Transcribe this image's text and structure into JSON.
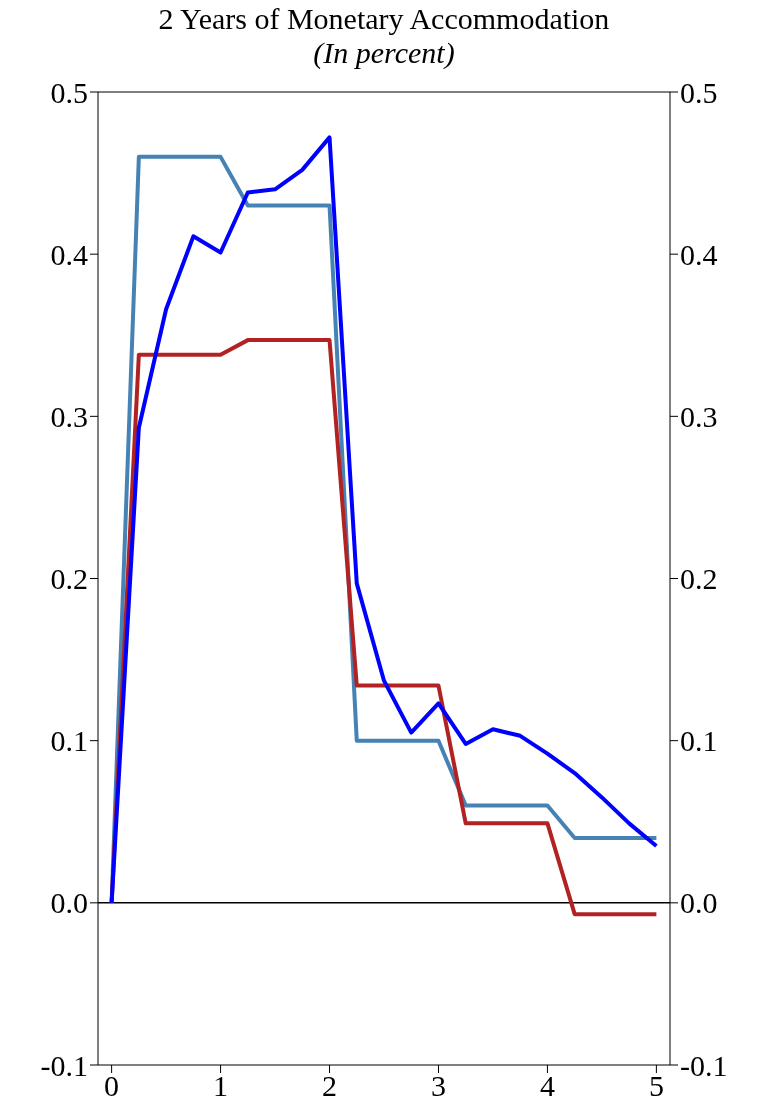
{
  "chart_data": {
    "type": "line",
    "title": "2 Years of Monetary Accommodation",
    "subtitle": "(In percent)",
    "x": [
      0,
      0.25,
      0.5,
      0.75,
      1,
      1.25,
      1.5,
      1.75,
      2,
      2.25,
      2.5,
      2.75,
      3,
      3.25,
      3.5,
      3.75,
      4,
      4.25,
      4.5,
      4.75,
      5
    ],
    "series": [
      {
        "color": "#4682b4",
        "values": [
          0,
          0.46,
          0.46,
          0.46,
          0.46,
          0.43,
          0.43,
          0.43,
          0.43,
          0.1,
          0.1,
          0.1,
          0.1,
          0.06,
          0.06,
          0.06,
          0.06,
          0.04,
          0.04,
          0.04,
          0.04
        ]
      },
      {
        "color": "#b22222",
        "values": [
          0,
          0.338,
          0.338,
          0.338,
          0.338,
          0.347,
          0.347,
          0.347,
          0.347,
          0.134,
          0.134,
          0.134,
          0.134,
          0.049,
          0.049,
          0.049,
          0.049,
          -0.007,
          -0.007,
          -0.007,
          -0.007
        ]
      },
      {
        "color": "#0000ff",
        "values": [
          0,
          0.293,
          0.366,
          0.411,
          0.401,
          0.438,
          0.44,
          0.452,
          0.472,
          0.197,
          0.137,
          0.105,
          0.123,
          0.098,
          0.107,
          0.103,
          0.092,
          0.08,
          0.065,
          0.049,
          0.035
        ]
      }
    ],
    "xlim": [
      -0.125,
      5.125
    ],
    "xticks": [
      0,
      1,
      2,
      3,
      4,
      5
    ],
    "ylim": [
      -0.1,
      0.5
    ],
    "yticks": [
      -0.1,
      {
        "value": 0,
        "label": "0.0"
      },
      0.1,
      0.2,
      0.3,
      0.4,
      0.5
    ],
    "y2lim": [
      -0.1,
      0.5
    ],
    "y2ticks": [
      -0.1,
      {
        "value": 0,
        "label": "0.0"
      },
      0.1,
      0.2,
      0.3,
      0.4,
      0.5
    ],
    "ref_lines": [
      {
        "axis": "y",
        "value": 0,
        "color": "#000000"
      }
    ],
    "grid": false,
    "legend": false,
    "marker": "none",
    "line_style": "solid"
  }
}
